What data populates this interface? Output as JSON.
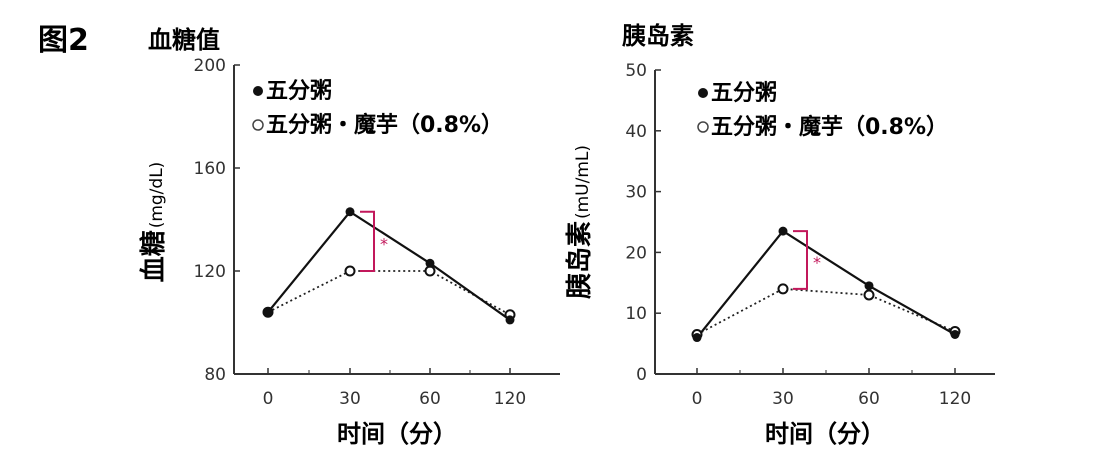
{
  "figure_label": "图2",
  "chart_data": [
    {
      "type": "line",
      "title": "血糖值",
      "ylabel": "血糖",
      "yunit": "(mg/dL)",
      "xlabel": "时间（分）",
      "categories": [
        "0",
        "30",
        "60",
        "120"
      ],
      "ylim": [
        80,
        200
      ],
      "yticks": [
        80,
        120,
        160,
        200
      ],
      "series": [
        {
          "name": "五分粥",
          "values": [
            104,
            143,
            123,
            101
          ],
          "marker": "filled-circle",
          "line": "solid"
        },
        {
          "name": "五分粥・魔芋（0.8%）",
          "values": [
            104,
            120,
            120,
            103
          ],
          "marker": "open-circle",
          "line": "dotted"
        }
      ],
      "annotation": {
        "text": "*",
        "category_index": 1,
        "from": 120,
        "to": 143,
        "color": "#c2185b"
      },
      "grid": false,
      "legend": "top-left"
    },
    {
      "type": "line",
      "title": "胰岛素",
      "ylabel": "胰岛素",
      "yunit": "(mU/mL)",
      "xlabel": "时间（分）",
      "categories": [
        "0",
        "30",
        "60",
        "120"
      ],
      "ylim": [
        0,
        50
      ],
      "yticks": [
        0,
        10,
        20,
        30,
        40,
        50
      ],
      "series": [
        {
          "name": "五分粥",
          "values": [
            6,
            23.5,
            14.5,
            6.5
          ],
          "marker": "filled-circle",
          "line": "solid"
        },
        {
          "name": "五分粥・魔芋（0.8%）",
          "values": [
            6.5,
            14,
            13,
            7
          ],
          "marker": "open-circle",
          "line": "dotted"
        }
      ],
      "annotation": {
        "text": "*",
        "category_index": 1,
        "from": 14,
        "to": 23.5,
        "color": "#c2185b"
      },
      "grid": false,
      "legend": "top-left"
    }
  ]
}
